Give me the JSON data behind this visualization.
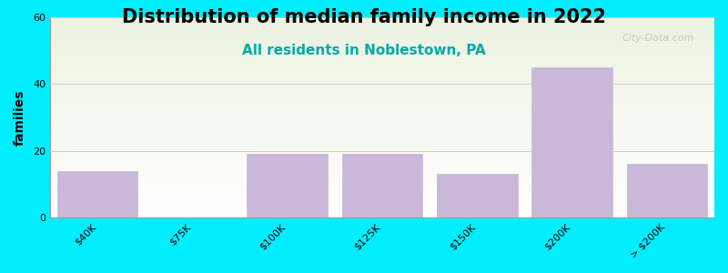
{
  "title": "Distribution of median family income in 2022",
  "subtitle": "All residents in Noblestown, PA",
  "ylabel": "families",
  "categories": [
    "$40K",
    "$75K",
    "$100K",
    "$125K",
    "$150K",
    "$200K",
    "> $200K"
  ],
  "values": [
    14,
    0,
    19,
    19,
    13,
    45,
    16
  ],
  "bar_color": "#C9B8D8",
  "bar_edge_color": "#C9B8D8",
  "background_color": "#00EEFF",
  "plot_bg_top": "#EBF2E0",
  "plot_bg_bottom": "#FFFFFF",
  "ylim": [
    0,
    60
  ],
  "yticks": [
    0,
    20,
    40,
    60
  ],
  "title_fontsize": 15,
  "subtitle_fontsize": 11,
  "subtitle_color": "#00AAAA",
  "ylabel_fontsize": 10,
  "tick_fontsize": 8,
  "watermark": "City-Data.com",
  "grid_color": "#CCCCCC"
}
